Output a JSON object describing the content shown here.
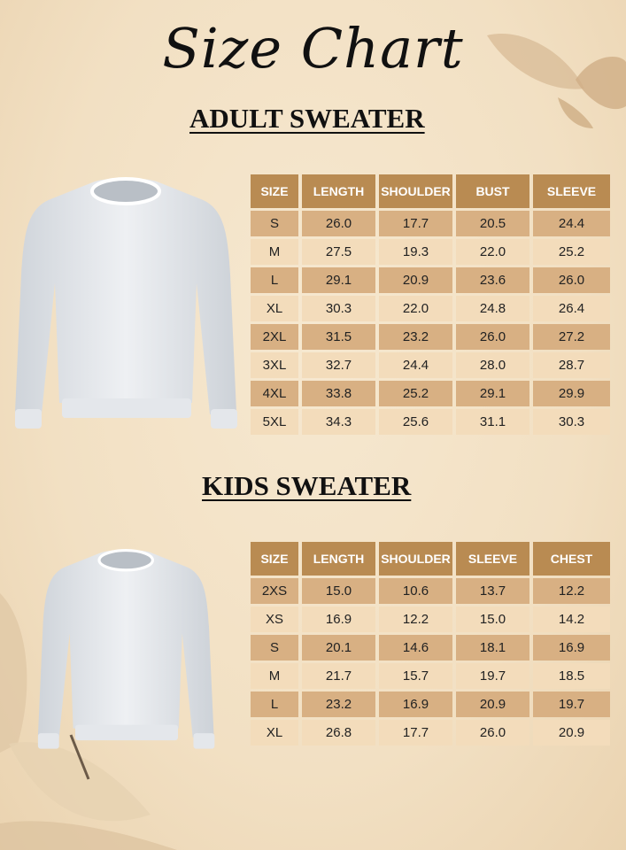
{
  "title": "Size Chart",
  "adult": {
    "heading": "ADULT SWEATER",
    "columns": [
      "SIZE",
      "LENGTH",
      "SHOULDER",
      "BUST",
      "SLEEVE"
    ],
    "rows": [
      [
        "S",
        "26.0",
        "17.7",
        "20.5",
        "24.4"
      ],
      [
        "M",
        "27.5",
        "19.3",
        "22.0",
        "25.2"
      ],
      [
        "L",
        "29.1",
        "20.9",
        "23.6",
        "26.0"
      ],
      [
        "XL",
        "30.3",
        "22.0",
        "24.8",
        "26.4"
      ],
      [
        "2XL",
        "31.5",
        "23.2",
        "26.0",
        "27.2"
      ],
      [
        "3XL",
        "32.7",
        "24.4",
        "28.0",
        "28.7"
      ],
      [
        "4XL",
        "33.8",
        "25.2",
        "29.1",
        "29.9"
      ],
      [
        "5XL",
        "34.3",
        "25.6",
        "31.1",
        "30.3"
      ]
    ]
  },
  "kids": {
    "heading": "KIDS SWEATER",
    "columns": [
      "SIZE",
      "LENGTH",
      "SHOULDER",
      "SLEEVE",
      "CHEST"
    ],
    "rows": [
      [
        "2XS",
        "15.0",
        "10.6",
        "13.7",
        "12.2"
      ],
      [
        "XS",
        "16.9",
        "12.2",
        "15.0",
        "14.2"
      ],
      [
        "S",
        "20.1",
        "14.6",
        "18.1",
        "16.9"
      ],
      [
        "M",
        "21.7",
        "15.7",
        "19.7",
        "18.5"
      ],
      [
        "L",
        "23.2",
        "16.9",
        "20.9",
        "19.7"
      ],
      [
        "XL",
        "26.8",
        "17.7",
        "26.0",
        "20.9"
      ]
    ]
  },
  "colors": {
    "header": "#b98b52",
    "row_dark": "#d8b083",
    "row_light": "#f3dcbb",
    "background": "#f2e0c3"
  },
  "icons": {
    "adult_image": "sweater-image",
    "kids_image": "sweater-image",
    "decor": "dried-leaf"
  }
}
